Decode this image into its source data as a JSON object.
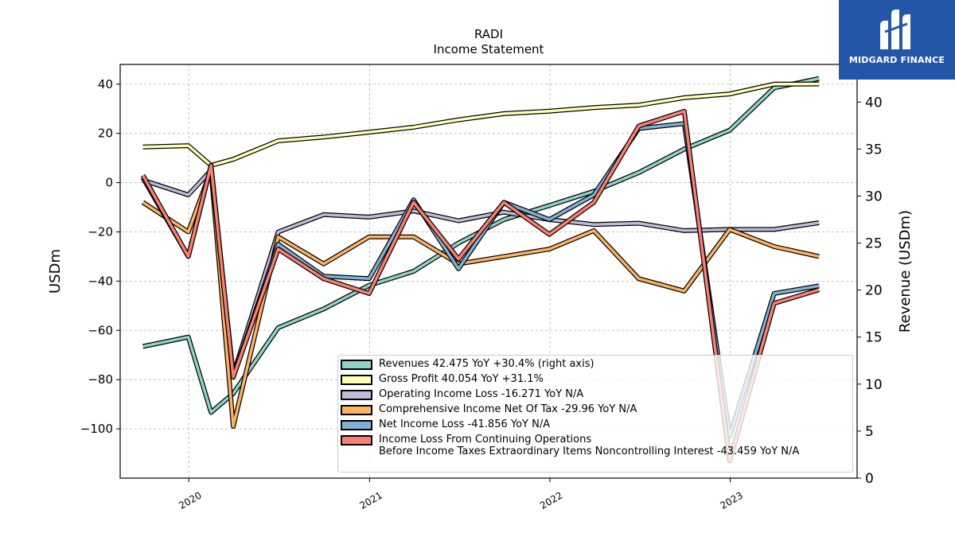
{
  "chart_data": {
    "type": "line",
    "title": "RADI",
    "subtitle": "Income Statement",
    "ylabel": "USDm",
    "y2label": "Revenue (USDm)",
    "ylim": [
      -120,
      48
    ],
    "y2lim": [
      0,
      44
    ],
    "yticks": [
      40,
      20,
      0,
      -20,
      -40,
      -60,
      -80,
      -100
    ],
    "y2ticks": [
      40,
      35,
      30,
      25,
      20,
      15,
      10,
      5,
      0
    ],
    "xticks": [
      "2020",
      "2021",
      "2022",
      "2023"
    ],
    "xtick_dates": [
      "2020-01-01",
      "2021-01-01",
      "2022-01-01",
      "2023-01-01"
    ],
    "xrange": [
      "2019-08-15",
      "2023-09-15"
    ],
    "grid": true,
    "legend_position": "lower right",
    "x": [
      "2019-09-30",
      "2019-12-31",
      "2020-02-15",
      "2020-03-31",
      "2020-06-30",
      "2020-09-30",
      "2020-12-31",
      "2021-03-31",
      "2021-06-30",
      "2021-09-30",
      "2021-12-31",
      "2022-03-31",
      "2022-06-30",
      "2022-09-30",
      "2022-12-31",
      "2023-03-31",
      "2023-06-30"
    ],
    "series": [
      {
        "name": "Revenues",
        "legend": "Revenues  42.475 YoY +30.4% (right axis)",
        "color": "#8dd3c7",
        "axis": "right",
        "values": [
          14,
          15,
          7,
          9,
          16,
          18,
          20.5,
          22,
          25,
          27.5,
          29,
          30.5,
          32.5,
          35,
          37,
          41.5,
          42.5
        ]
      },
      {
        "name": "Gross Profit",
        "legend": "Gross Profit  40.054 YoY +31.1%",
        "color": "#ffffb3",
        "axis": "left",
        "values": [
          14.5,
          15,
          7,
          9.5,
          17,
          18.5,
          20.5,
          22.5,
          25.5,
          28,
          29,
          30.5,
          31.5,
          34.5,
          36,
          40,
          40.1
        ]
      },
      {
        "name": "Operating Income Loss",
        "legend": "Operating Income Loss  -16.271 YoY N/A",
        "color": "#bebada",
        "axis": "left",
        "values": [
          1,
          -5,
          5,
          -78,
          -20,
          -13,
          -14,
          -11.5,
          -15.5,
          -12,
          -15,
          -17,
          -16.5,
          -19.5,
          -19,
          -19,
          -16.3
        ]
      },
      {
        "name": "Comprehensive Income Net Of Tax",
        "legend": "Comprehensive Income Net Of Tax  -29.96 YoY N/A",
        "color": "#fdb462",
        "axis": "left",
        "values": [
          -8,
          -20,
          5,
          -99,
          -22,
          -33,
          -22,
          -22,
          -33,
          -30,
          -27,
          -19.5,
          -39,
          -44,
          -19,
          -26,
          -30
        ]
      },
      {
        "name": "Net Income Loss",
        "legend": "Net Income Loss  -41.856 YoY N/A",
        "color": "#80b1d3",
        "axis": "left",
        "values": [
          2,
          -30,
          7,
          -79,
          -25,
          -38,
          -39,
          -7,
          -35,
          -8,
          -15,
          -5,
          22,
          24,
          -103,
          -45,
          -41.9
        ]
      },
      {
        "name": "Income Loss From Continuing Operations Before Income Taxes Extraordinary Items Noncontrolling Interest",
        "legend": "Income Loss From Continuing Operations\nBefore Income Taxes Extraordinary Items Noncontrolling Interest  -43.459 YoY N/A",
        "color": "#fb8072",
        "axis": "left",
        "values": [
          3,
          -30,
          7,
          -79,
          -27,
          -39,
          -45,
          -8,
          -31,
          -8,
          -21,
          -8,
          23,
          29,
          -113,
          -49,
          -43.5
        ]
      }
    ]
  },
  "logo": {
    "text": "MIDGARD FINANCE"
  }
}
